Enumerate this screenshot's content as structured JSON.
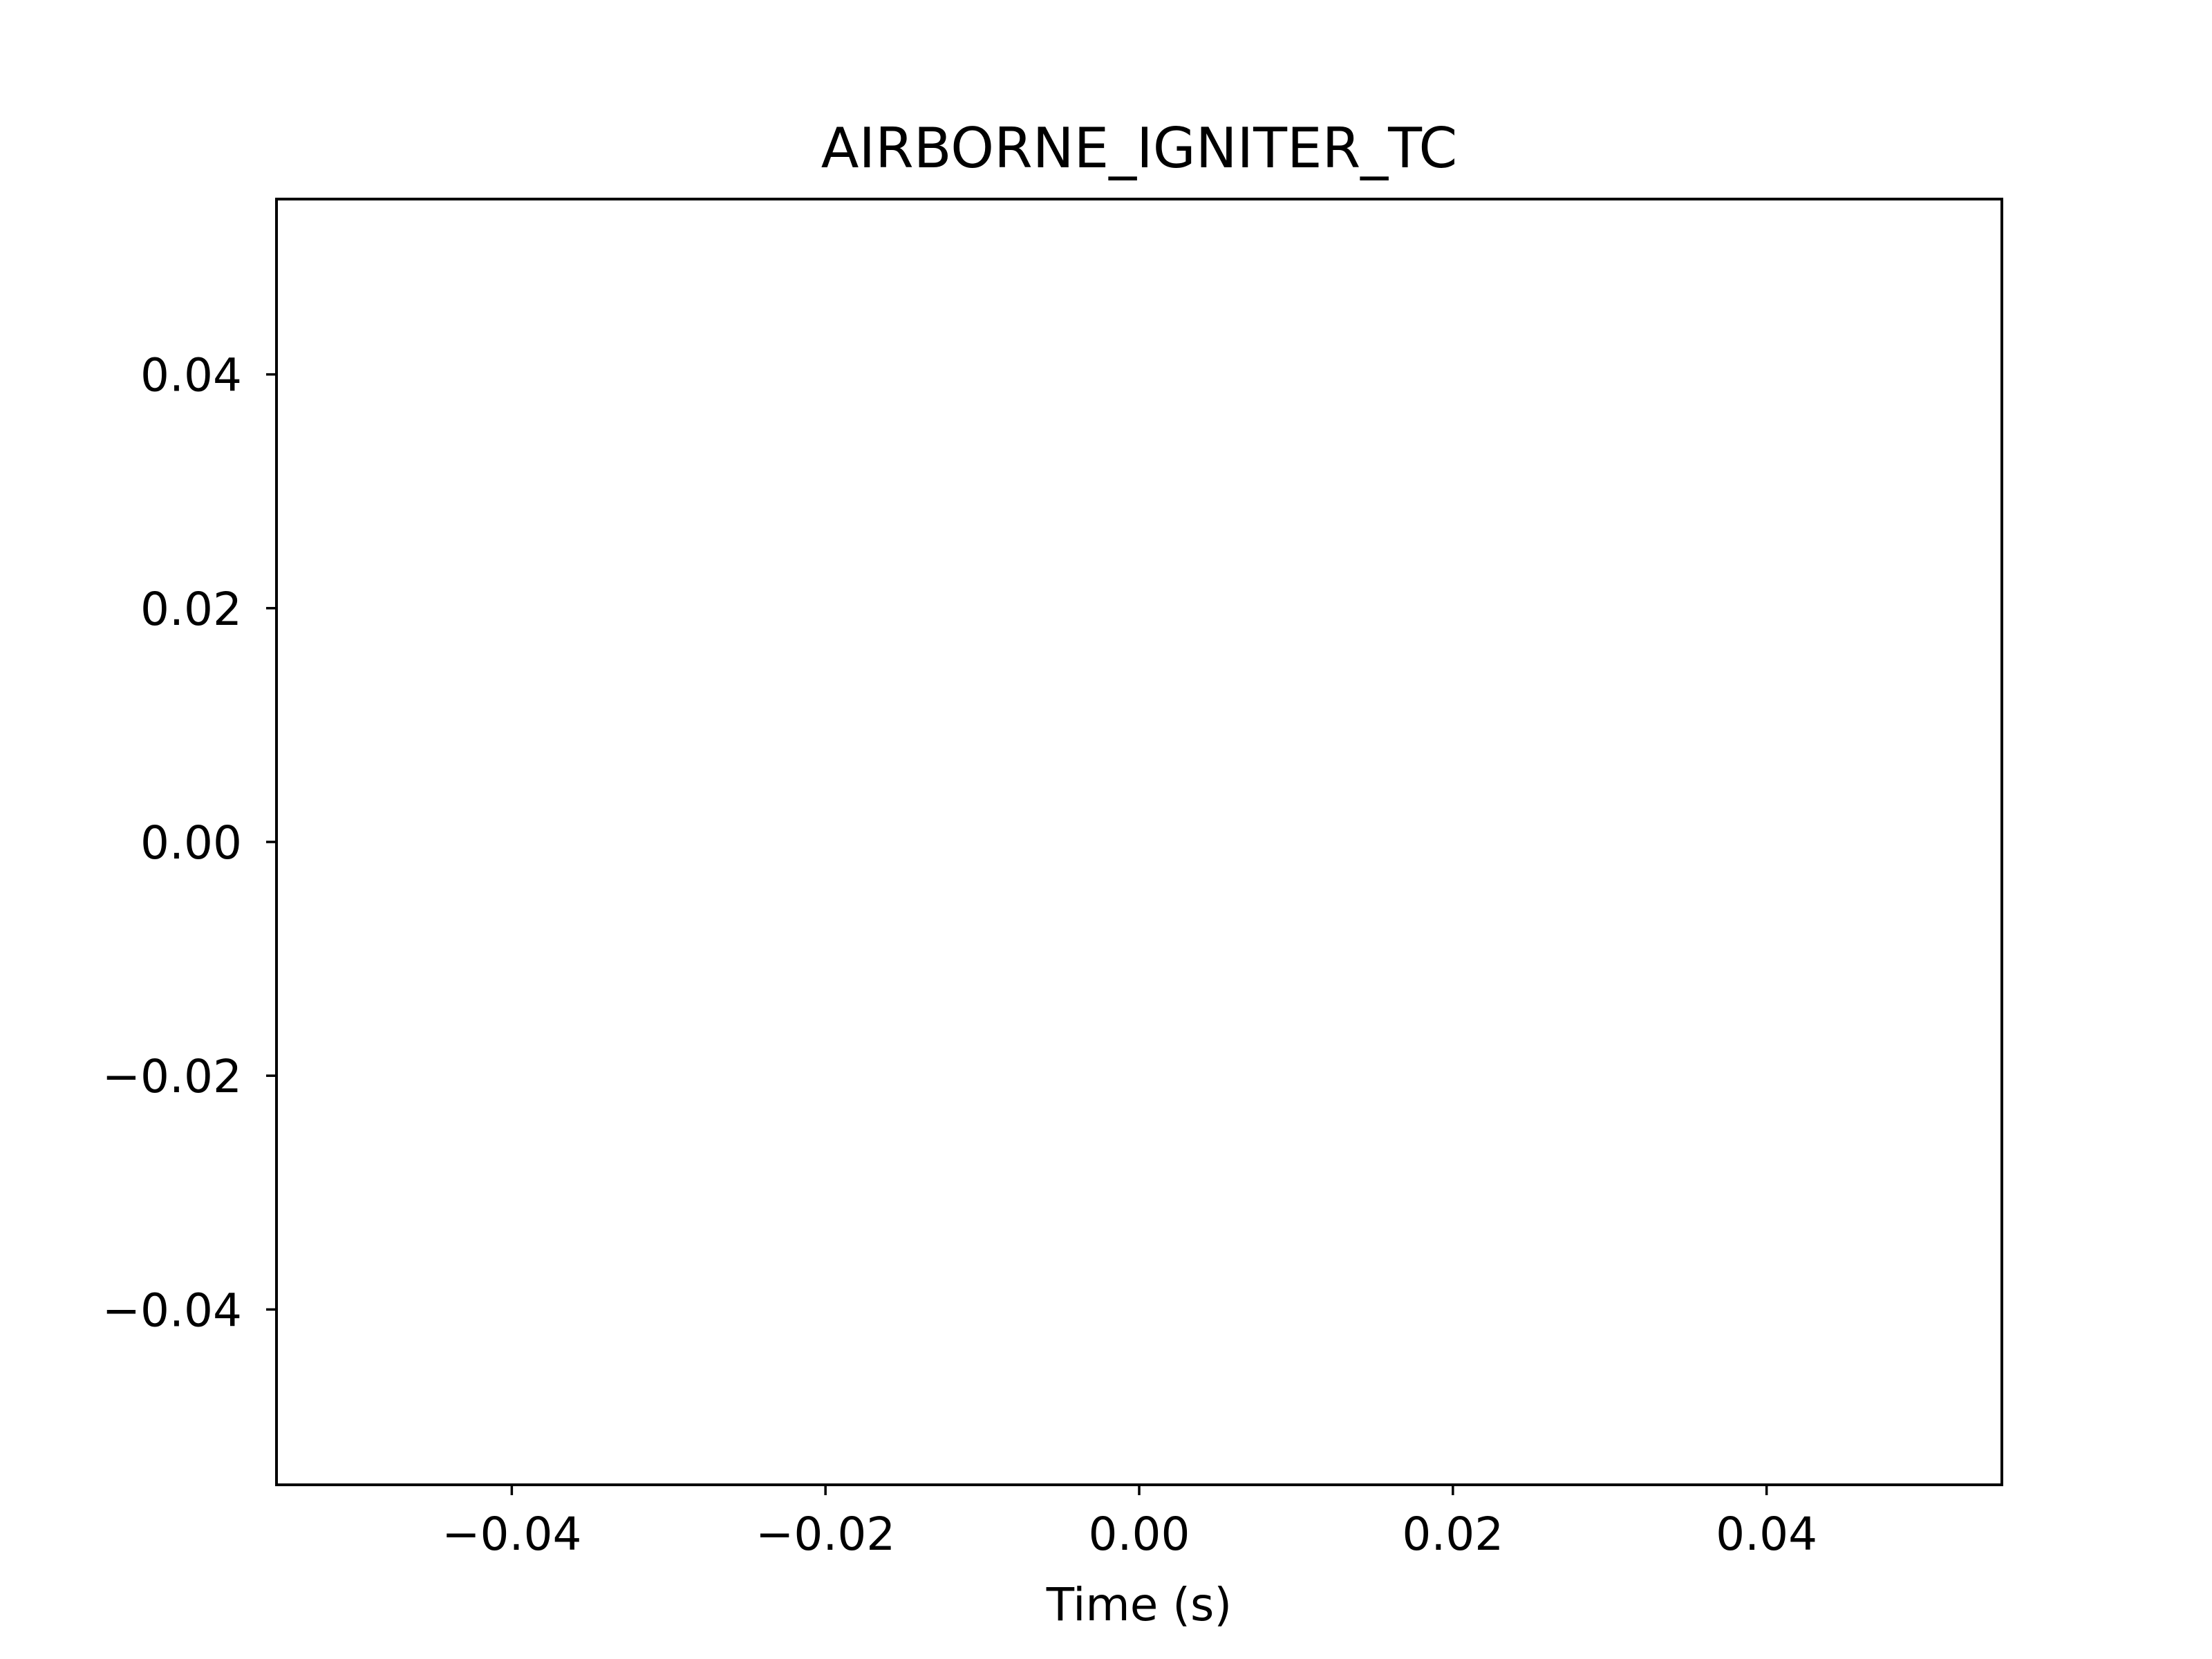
{
  "chart_data": {
    "type": "line",
    "title": "AIRBORNE_IGNITER_TC",
    "xlabel": "Time (s)",
    "ylabel": "",
    "xlim": [
      -0.055,
      0.055
    ],
    "ylim": [
      -0.055,
      0.055
    ],
    "xticks": [
      {
        "value": -0.04,
        "label": "−0.04"
      },
      {
        "value": -0.02,
        "label": "−0.02"
      },
      {
        "value": 0.0,
        "label": "0.00"
      },
      {
        "value": 0.02,
        "label": "0.02"
      },
      {
        "value": 0.04,
        "label": "0.04"
      }
    ],
    "yticks": [
      {
        "value": -0.04,
        "label": "−0.04"
      },
      {
        "value": -0.02,
        "label": "−0.02"
      },
      {
        "value": 0.0,
        "label": "0.00"
      },
      {
        "value": 0.02,
        "label": "0.02"
      },
      {
        "value": 0.04,
        "label": "0.04"
      }
    ],
    "series": [],
    "grid": false,
    "legend": "none",
    "colors": {
      "axes": "#000000",
      "background": "#ffffff"
    }
  }
}
